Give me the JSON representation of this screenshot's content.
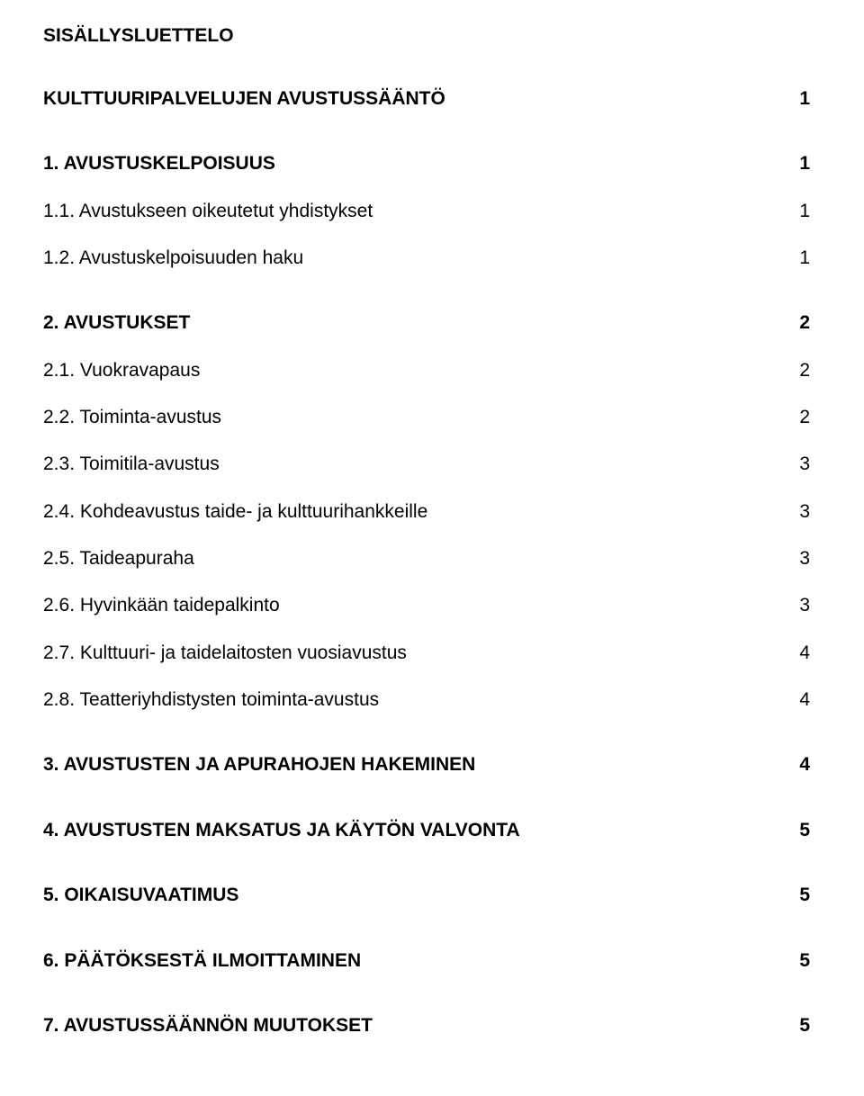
{
  "title": "SISÄLLYSLUETTELO",
  "toc": [
    {
      "text": "KULTTUURIPALVELUJEN AVUSTUSSÄÄNTÖ",
      "page": "1",
      "bold": true,
      "extraAfter": true
    },
    {
      "text": "1. AVUSTUSKELPOISUUS",
      "page": "1",
      "bold": true,
      "extraAfter": false
    },
    {
      "text": "1.1. Avustukseen oikeutetut yhdistykset",
      "page": "1",
      "bold": false,
      "extraAfter": false
    },
    {
      "text": "1.2. Avustuskelpoisuuden haku",
      "page": "1",
      "bold": false,
      "extraAfter": true
    },
    {
      "text": "2. AVUSTUKSET",
      "page": "2",
      "bold": true,
      "extraAfter": false
    },
    {
      "text": "2.1. Vuokravapaus",
      "page": "2",
      "bold": false,
      "extraAfter": false
    },
    {
      "text": "2.2. Toiminta-avustus",
      "page": "2",
      "bold": false,
      "extraAfter": false
    },
    {
      "text": "2.3. Toimitila-avustus",
      "page": "3",
      "bold": false,
      "extraAfter": false
    },
    {
      "text": "2.4. Kohdeavustus taide- ja kulttuurihankkeille",
      "page": "3",
      "bold": false,
      "extraAfter": false
    },
    {
      "text": "2.5. Taideapuraha",
      "page": "3",
      "bold": false,
      "extraAfter": false
    },
    {
      "text": "2.6. Hyvinkään taidepalkinto",
      "page": "3",
      "bold": false,
      "extraAfter": false
    },
    {
      "text": "2.7. Kulttuuri- ja taidelaitosten vuosiavustus",
      "page": "4",
      "bold": false,
      "extraAfter": false
    },
    {
      "text": "2.8. Teatteriyhdistysten toiminta-avustus",
      "page": "4",
      "bold": false,
      "extraAfter": true
    },
    {
      "text": "3. AVUSTUSTEN JA APURAHOJEN HAKEMINEN",
      "page": "4",
      "bold": true,
      "extraAfter": true
    },
    {
      "text": "4. AVUSTUSTEN MAKSATUS JA KÄYTÖN VALVONTA",
      "page": "5",
      "bold": true,
      "extraAfter": true
    },
    {
      "text": "5. OIKAISUVAATIMUS",
      "page": "5",
      "bold": true,
      "extraAfter": true
    },
    {
      "text": "6. PÄÄTÖKSESTÄ ILMOITTAMINEN",
      "page": "5",
      "bold": true,
      "extraAfter": true
    },
    {
      "text": "7. AVUSTUSSÄÄNNÖN MUUTOKSET",
      "page": "5",
      "bold": true,
      "extraAfter": false
    }
  ]
}
